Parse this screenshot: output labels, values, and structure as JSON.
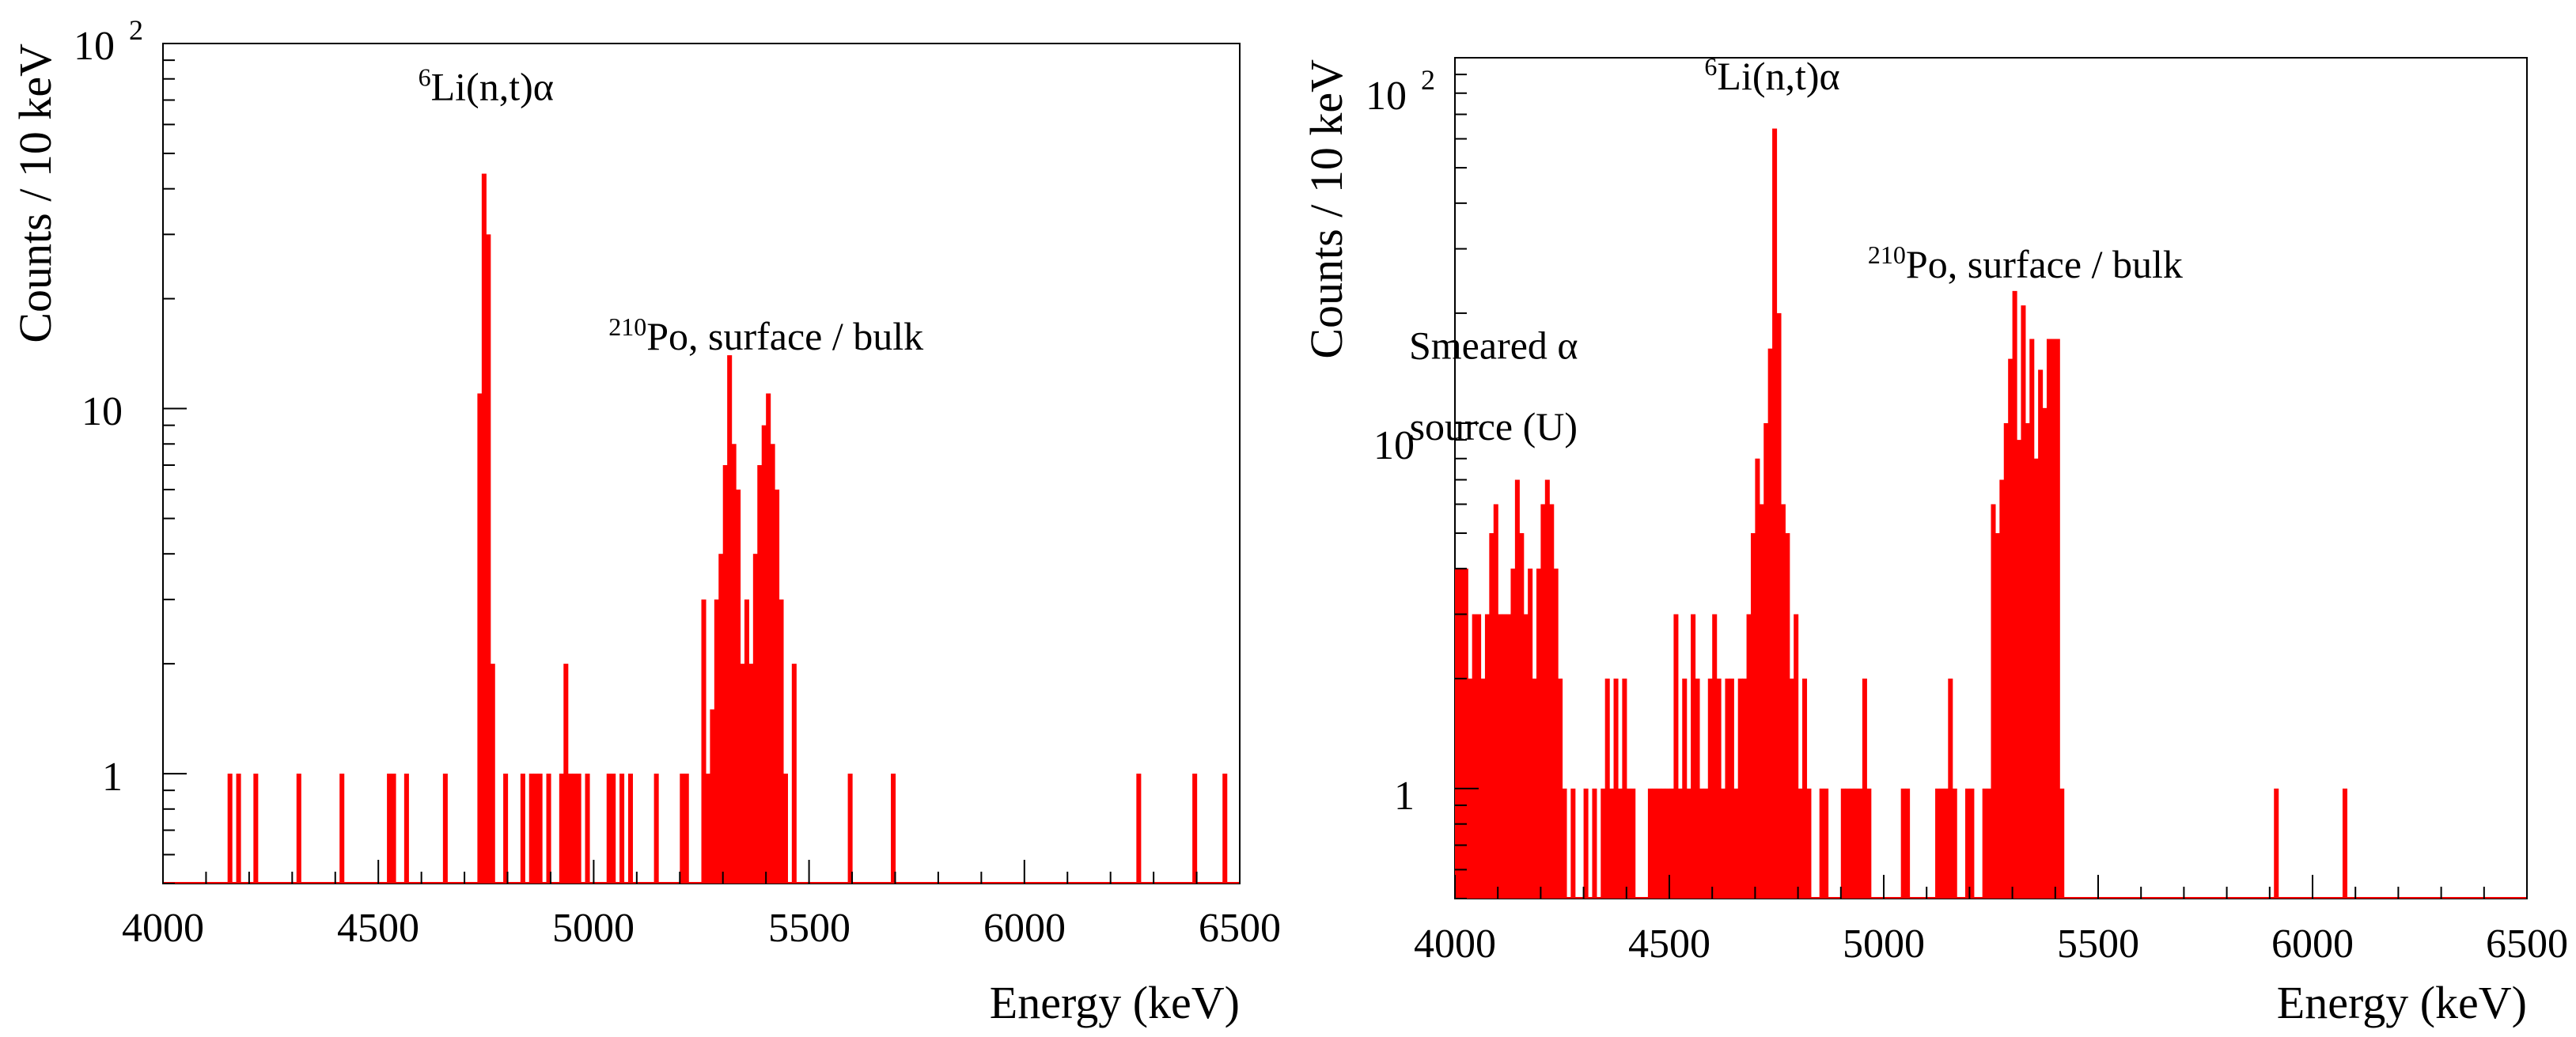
{
  "colors": {
    "bars": "#ff0000",
    "axes": "#000000",
    "background": "#ffffff"
  },
  "chart_data": [
    {
      "type": "bar",
      "title": "",
      "xlabel": "Energy (keV)",
      "ylabel": "Counts / 10 keV",
      "yscale": "log",
      "xlim": [
        4000,
        6500
      ],
      "ylim": [
        0.5,
        100
      ],
      "bin_width_keV": 10,
      "xticks": [
        "4000",
        "4500",
        "5000",
        "5500",
        "6000",
        "6500"
      ],
      "yticks": [
        {
          "value": 1,
          "label": "1",
          "sup": ""
        },
        {
          "value": 10,
          "label": "10",
          "sup": ""
        },
        {
          "value": 100,
          "label": "10",
          "sup": "2"
        }
      ],
      "annotations": [
        {
          "id": "li",
          "sup": "6",
          "text": "Li(n,t)α",
          "x": 4750,
          "y": 70
        },
        {
          "id": "po",
          "sup": "210",
          "text": "Po, surface / bulk",
          "x": 5400,
          "y": 14.5
        }
      ],
      "bins": [
        {
          "x": 4150,
          "y": 1
        },
        {
          "x": 4170,
          "y": 1
        },
        {
          "x": 4210,
          "y": 1
        },
        {
          "x": 4310,
          "y": 1
        },
        {
          "x": 4410,
          "y": 1
        },
        {
          "x": 4520,
          "y": 1
        },
        {
          "x": 4530,
          "y": 1
        },
        {
          "x": 4560,
          "y": 1
        },
        {
          "x": 4650,
          "y": 1
        },
        {
          "x": 4730,
          "y": 11
        },
        {
          "x": 4740,
          "y": 44
        },
        {
          "x": 4750,
          "y": 30
        },
        {
          "x": 4760,
          "y": 2
        },
        {
          "x": 4790,
          "y": 1
        },
        {
          "x": 4830,
          "y": 1
        },
        {
          "x": 4850,
          "y": 1
        },
        {
          "x": 4860,
          "y": 1
        },
        {
          "x": 4870,
          "y": 1
        },
        {
          "x": 4890,
          "y": 1
        },
        {
          "x": 4920,
          "y": 1
        },
        {
          "x": 4930,
          "y": 2
        },
        {
          "x": 4940,
          "y": 1
        },
        {
          "x": 4950,
          "y": 1
        },
        {
          "x": 4960,
          "y": 1
        },
        {
          "x": 4980,
          "y": 1
        },
        {
          "x": 5030,
          "y": 1
        },
        {
          "x": 5040,
          "y": 1
        },
        {
          "x": 5060,
          "y": 1
        },
        {
          "x": 5080,
          "y": 1
        },
        {
          "x": 5140,
          "y": 1
        },
        {
          "x": 5200,
          "y": 1
        },
        {
          "x": 5210,
          "y": 1
        },
        {
          "x": 5250,
          "y": 3
        },
        {
          "x": 5260,
          "y": 1
        },
        {
          "x": 5270,
          "y": 1.5
        },
        {
          "x": 5280,
          "y": 3
        },
        {
          "x": 5290,
          "y": 4
        },
        {
          "x": 5300,
          "y": 7
        },
        {
          "x": 5310,
          "y": 14
        },
        {
          "x": 5320,
          "y": 8
        },
        {
          "x": 5330,
          "y": 6
        },
        {
          "x": 5340,
          "y": 2
        },
        {
          "x": 5350,
          "y": 3
        },
        {
          "x": 5360,
          "y": 2
        },
        {
          "x": 5370,
          "y": 4
        },
        {
          "x": 5380,
          "y": 7
        },
        {
          "x": 5390,
          "y": 9
        },
        {
          "x": 5400,
          "y": 11
        },
        {
          "x": 5410,
          "y": 8
        },
        {
          "x": 5420,
          "y": 6
        },
        {
          "x": 5430,
          "y": 3
        },
        {
          "x": 5440,
          "y": 1
        },
        {
          "x": 5460,
          "y": 2
        },
        {
          "x": 5590,
          "y": 1
        },
        {
          "x": 5690,
          "y": 1
        },
        {
          "x": 6260,
          "y": 1
        },
        {
          "x": 6390,
          "y": 1
        },
        {
          "x": 6460,
          "y": 1
        }
      ]
    },
    {
      "type": "bar",
      "title": "",
      "xlabel": "Energy (keV)",
      "ylabel": "Counts / 10 keV",
      "yscale": "log",
      "xlim": [
        4000,
        6500
      ],
      "ylim": [
        0.5,
        100
      ],
      "bin_width_keV": 10,
      "xticks": [
        "4000",
        "4500",
        "5000",
        "5500",
        "6000",
        "6500"
      ],
      "yticks": [
        {
          "value": 1,
          "label": "1",
          "sup": ""
        },
        {
          "value": 10,
          "label": "10",
          "sup": ""
        },
        {
          "value": 100,
          "label": "10",
          "sup": "2"
        }
      ],
      "annotations": [
        {
          "id": "smeared",
          "sup": "",
          "text": "Smeared α",
          "x": 4090,
          "y": 15
        },
        {
          "id": "source",
          "sup": "",
          "text": "source (U)",
          "x": 4090,
          "y": 9
        },
        {
          "id": "li",
          "sup": "6",
          "text": "Li(n,t)α",
          "x": 4740,
          "y": 82
        },
        {
          "id": "po",
          "sup": "210",
          "text": "Po, surface / bulk",
          "x": 5330,
          "y": 25
        }
      ],
      "bins": [
        {
          "x": 4000,
          "y": 4
        },
        {
          "x": 4010,
          "y": 4
        },
        {
          "x": 4020,
          "y": 4
        },
        {
          "x": 4030,
          "y": 2
        },
        {
          "x": 4040,
          "y": 3
        },
        {
          "x": 4050,
          "y": 3
        },
        {
          "x": 4060,
          "y": 2
        },
        {
          "x": 4070,
          "y": 3
        },
        {
          "x": 4080,
          "y": 5
        },
        {
          "x": 4090,
          "y": 6
        },
        {
          "x": 4100,
          "y": 3
        },
        {
          "x": 4110,
          "y": 3
        },
        {
          "x": 4120,
          "y": 3
        },
        {
          "x": 4130,
          "y": 4
        },
        {
          "x": 4140,
          "y": 7
        },
        {
          "x": 4150,
          "y": 5
        },
        {
          "x": 4160,
          "y": 3
        },
        {
          "x": 4170,
          "y": 4
        },
        {
          "x": 4180,
          "y": 2
        },
        {
          "x": 4190,
          "y": 4
        },
        {
          "x": 4200,
          "y": 6
        },
        {
          "x": 4210,
          "y": 7
        },
        {
          "x": 4220,
          "y": 6
        },
        {
          "x": 4230,
          "y": 4
        },
        {
          "x": 4240,
          "y": 2
        },
        {
          "x": 4250,
          "y": 1
        },
        {
          "x": 4270,
          "y": 1
        },
        {
          "x": 4300,
          "y": 1
        },
        {
          "x": 4320,
          "y": 1
        },
        {
          "x": 4340,
          "y": 1
        },
        {
          "x": 4350,
          "y": 2
        },
        {
          "x": 4360,
          "y": 1
        },
        {
          "x": 4370,
          "y": 2
        },
        {
          "x": 4380,
          "y": 1
        },
        {
          "x": 4390,
          "y": 2
        },
        {
          "x": 4400,
          "y": 1
        },
        {
          "x": 4410,
          "y": 1
        },
        {
          "x": 4450,
          "y": 1
        },
        {
          "x": 4460,
          "y": 1
        },
        {
          "x": 4470,
          "y": 1
        },
        {
          "x": 4480,
          "y": 1
        },
        {
          "x": 4490,
          "y": 1
        },
        {
          "x": 4500,
          "y": 1
        },
        {
          "x": 4510,
          "y": 3
        },
        {
          "x": 4520,
          "y": 1
        },
        {
          "x": 4530,
          "y": 2
        },
        {
          "x": 4540,
          "y": 1
        },
        {
          "x": 4550,
          "y": 3
        },
        {
          "x": 4560,
          "y": 2
        },
        {
          "x": 4570,
          "y": 1
        },
        {
          "x": 4580,
          "y": 1
        },
        {
          "x": 4590,
          "y": 2
        },
        {
          "x": 4600,
          "y": 3
        },
        {
          "x": 4610,
          "y": 2
        },
        {
          "x": 4620,
          "y": 1
        },
        {
          "x": 4630,
          "y": 2
        },
        {
          "x": 4640,
          "y": 2
        },
        {
          "x": 4650,
          "y": 1
        },
        {
          "x": 4660,
          "y": 2
        },
        {
          "x": 4670,
          "y": 2
        },
        {
          "x": 4680,
          "y": 3
        },
        {
          "x": 4690,
          "y": 5
        },
        {
          "x": 4700,
          "y": 8
        },
        {
          "x": 4710,
          "y": 6
        },
        {
          "x": 4720,
          "y": 10
        },
        {
          "x": 4730,
          "y": 16
        },
        {
          "x": 4740,
          "y": 64
        },
        {
          "x": 4750,
          "y": 20
        },
        {
          "x": 4760,
          "y": 6
        },
        {
          "x": 4770,
          "y": 5
        },
        {
          "x": 4780,
          "y": 2
        },
        {
          "x": 4790,
          "y": 3
        },
        {
          "x": 4800,
          "y": 1
        },
        {
          "x": 4810,
          "y": 2
        },
        {
          "x": 4820,
          "y": 1
        },
        {
          "x": 4850,
          "y": 1
        },
        {
          "x": 4860,
          "y": 1
        },
        {
          "x": 4900,
          "y": 1
        },
        {
          "x": 4910,
          "y": 1
        },
        {
          "x": 4920,
          "y": 1
        },
        {
          "x": 4930,
          "y": 1
        },
        {
          "x": 4940,
          "y": 1
        },
        {
          "x": 4950,
          "y": 2
        },
        {
          "x": 4960,
          "y": 1
        },
        {
          "x": 5040,
          "y": 1
        },
        {
          "x": 5050,
          "y": 1
        },
        {
          "x": 5120,
          "y": 1
        },
        {
          "x": 5130,
          "y": 1
        },
        {
          "x": 5140,
          "y": 1
        },
        {
          "x": 5150,
          "y": 2
        },
        {
          "x": 5160,
          "y": 1
        },
        {
          "x": 5190,
          "y": 1
        },
        {
          "x": 5200,
          "y": 1
        },
        {
          "x": 5230,
          "y": 1
        },
        {
          "x": 5240,
          "y": 1
        },
        {
          "x": 5250,
          "y": 6
        },
        {
          "x": 5260,
          "y": 5
        },
        {
          "x": 5270,
          "y": 7
        },
        {
          "x": 5280,
          "y": 10
        },
        {
          "x": 5290,
          "y": 15
        },
        {
          "x": 5300,
          "y": 23
        },
        {
          "x": 5310,
          "y": 9
        },
        {
          "x": 5320,
          "y": 21
        },
        {
          "x": 5330,
          "y": 10
        },
        {
          "x": 5340,
          "y": 17
        },
        {
          "x": 5350,
          "y": 8
        },
        {
          "x": 5360,
          "y": 14
        },
        {
          "x": 5370,
          "y": 11
        },
        {
          "x": 5380,
          "y": 17
        },
        {
          "x": 5390,
          "y": 17
        },
        {
          "x": 5400,
          "y": 17
        },
        {
          "x": 5410,
          "y": 1
        },
        {
          "x": 5910,
          "y": 1
        },
        {
          "x": 6070,
          "y": 1
        }
      ]
    }
  ]
}
